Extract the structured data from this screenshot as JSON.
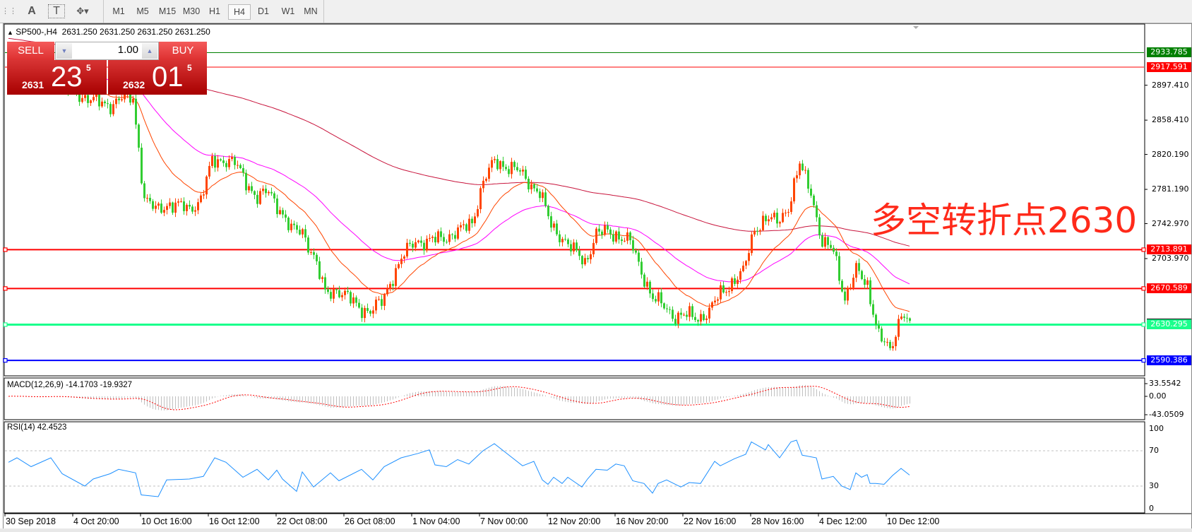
{
  "toolbar": {
    "tools": [
      {
        "name": "grid-menu-icon",
        "glyph": "⋮⋮"
      },
      {
        "name": "text-icon",
        "glyph": "A"
      },
      {
        "name": "text-label-icon",
        "glyph": "T"
      },
      {
        "name": "shapes-icon",
        "glyph": "✥▾"
      }
    ],
    "timeframes": [
      "M1",
      "M5",
      "M15",
      "M30",
      "H1",
      "H4",
      "D1",
      "W1",
      "MN"
    ],
    "active_timeframe": "H4"
  },
  "chart": {
    "symbol": "SP500-,H4",
    "ohlc": "2631.250 2631.250 2631.250 2631.250",
    "annotation": "多空转折点2630"
  },
  "trade_panel": {
    "sell_label": "SELL",
    "buy_label": "BUY",
    "lot": "1.00",
    "sell_price": {
      "prefix": "2631",
      "big": "23",
      "sup": "5"
    },
    "buy_price": {
      "prefix": "2632",
      "big": "01",
      "sup": "5"
    }
  },
  "price_axis": {
    "ticks": [
      "2897.410",
      "2858.410",
      "2820.190",
      "2781.190",
      "2742.970",
      "2703.970"
    ]
  },
  "levels": [
    {
      "price": "2933.785",
      "color": "#008000",
      "style": "thin"
    },
    {
      "price": "2917.591",
      "color": "#ff0000",
      "style": "thin"
    },
    {
      "price": "2713.891",
      "color": "#ff0000",
      "style": "thick"
    },
    {
      "price": "2670.589",
      "color": "#ff0000",
      "style": "thick"
    },
    {
      "price": "2630.295",
      "color": "#1aff8c",
      "style": "thick"
    },
    {
      "price": "2590.386",
      "color": "#0000ff",
      "style": "thick"
    }
  ],
  "macd": {
    "label": "MACD(12,26,9) -14.1703 -19.9327",
    "axis": [
      "33.5542",
      "0.00",
      "-43.0509"
    ]
  },
  "rsi": {
    "label": "RSI(14) 42.4523",
    "axis": [
      "100",
      "70",
      "30",
      "0"
    ],
    "levels": [
      70,
      30
    ]
  },
  "time_axis": [
    "30 Sep 2018",
    "4 Oct 20:00",
    "10 Oct 16:00",
    "16 Oct 12:00",
    "22 Oct 08:00",
    "26 Oct 08:00",
    "1 Nov 04:00",
    "7 Nov 00:00",
    "12 Nov 20:00",
    "16 Nov 20:00",
    "22 Nov 16:00",
    "28 Nov 16:00",
    "4 Dec 12:00",
    "10 Dec 12:00"
  ],
  "colors": {
    "bull_candle": "#ff4500",
    "bear_candle": "#32cd32",
    "ma_fast": "#ff4500",
    "ma_mid": "#ff00ff",
    "ma_slow": "#c8143c",
    "rsi_line": "#1e90ff",
    "macd_hist": "#c0c0c0",
    "macd_signal": "#ff0000"
  },
  "chart_data": {
    "type": "candlestick",
    "symbol": "SP500-",
    "timeframe": "H4",
    "bars": 320,
    "close_every_4_bars": [
      2905,
      2908,
      2900,
      2912,
      2905,
      2895,
      2890,
      2882,
      2878,
      2876,
      2882,
      2884,
      2770,
      2758,
      2765,
      2762,
      2760,
      2770,
      2812,
      2815,
      2810,
      2790,
      2772,
      2778,
      2760,
      2735,
      2735,
      2706,
      2665,
      2670,
      2660,
      2650,
      2645,
      2655,
      2685,
      2708,
      2725,
      2722,
      2726,
      2730,
      2735,
      2745,
      2790,
      2812,
      2808,
      2802,
      2790,
      2778,
      2740,
      2728,
      2712,
      2700,
      2732,
      2733,
      2730,
      2722,
      2690,
      2660,
      2650,
      2640,
      2640,
      2638,
      2645,
      2665,
      2678,
      2688,
      2738,
      2748,
      2745,
      2762,
      2808,
      2780,
      2720,
      2713,
      2660,
      2690,
      2675,
      2618,
      2600,
      2645,
      2631
    ],
    "rsi_samples_bar_value": [
      [
        0,
        57
      ],
      [
        3,
        62
      ],
      [
        8,
        52
      ],
      [
        15,
        62
      ],
      [
        19,
        44
      ],
      [
        27,
        30
      ],
      [
        30,
        38
      ],
      [
        36,
        44
      ],
      [
        39,
        49
      ],
      [
        45,
        45
      ],
      [
        47,
        20
      ],
      [
        53,
        18
      ],
      [
        56,
        37
      ],
      [
        64,
        38
      ],
      [
        69,
        41
      ],
      [
        73,
        62
      ],
      [
        77,
        57
      ],
      [
        83,
        40
      ],
      [
        88,
        49
      ],
      [
        92,
        37
      ],
      [
        95,
        48
      ],
      [
        97,
        38
      ],
      [
        102,
        24
      ],
      [
        104,
        46
      ],
      [
        108,
        29
      ],
      [
        114,
        45
      ],
      [
        117,
        36
      ],
      [
        125,
        49
      ],
      [
        129,
        37
      ],
      [
        133,
        52
      ],
      [
        139,
        62
      ],
      [
        145,
        67
      ],
      [
        149,
        71
      ],
      [
        151,
        54
      ],
      [
        155,
        52
      ],
      [
        159,
        60
      ],
      [
        163,
        55
      ],
      [
        168,
        70
      ],
      [
        172,
        78
      ],
      [
        176,
        68
      ],
      [
        182,
        53
      ],
      [
        186,
        58
      ],
      [
        189,
        37
      ],
      [
        191,
        32
      ],
      [
        193,
        40
      ],
      [
        196,
        33
      ],
      [
        198,
        40
      ],
      [
        203,
        29
      ],
      [
        205,
        38
      ],
      [
        208,
        49
      ],
      [
        212,
        48
      ],
      [
        215,
        55
      ],
      [
        218,
        53
      ],
      [
        221,
        36
      ],
      [
        225,
        33
      ],
      [
        228,
        22
      ],
      [
        230,
        33
      ],
      [
        233,
        37
      ],
      [
        238,
        29
      ],
      [
        241,
        34
      ],
      [
        245,
        33
      ],
      [
        250,
        58
      ],
      [
        252,
        53
      ],
      [
        257,
        61
      ],
      [
        261,
        66
      ],
      [
        263,
        80
      ],
      [
        268,
        71
      ],
      [
        269,
        77
      ],
      [
        273,
        62
      ],
      [
        277,
        80
      ],
      [
        279,
        82
      ],
      [
        281,
        65
      ],
      [
        286,
        62
      ],
      [
        288,
        38
      ],
      [
        292,
        41
      ],
      [
        295,
        30
      ],
      [
        298,
        26
      ],
      [
        300,
        45
      ],
      [
        302,
        40
      ],
      [
        304,
        43
      ],
      [
        305,
        33
      ],
      [
        307,
        33
      ],
      [
        310,
        32
      ],
      [
        313,
        42
      ],
      [
        316,
        50
      ],
      [
        319,
        42.45
      ]
    ],
    "last_price": 2631.25,
    "price_range": [
      2545,
      2940
    ],
    "rsi_range": [
      0,
      100
    ],
    "macd_range": [
      -43.0509,
      33.5542
    ]
  }
}
